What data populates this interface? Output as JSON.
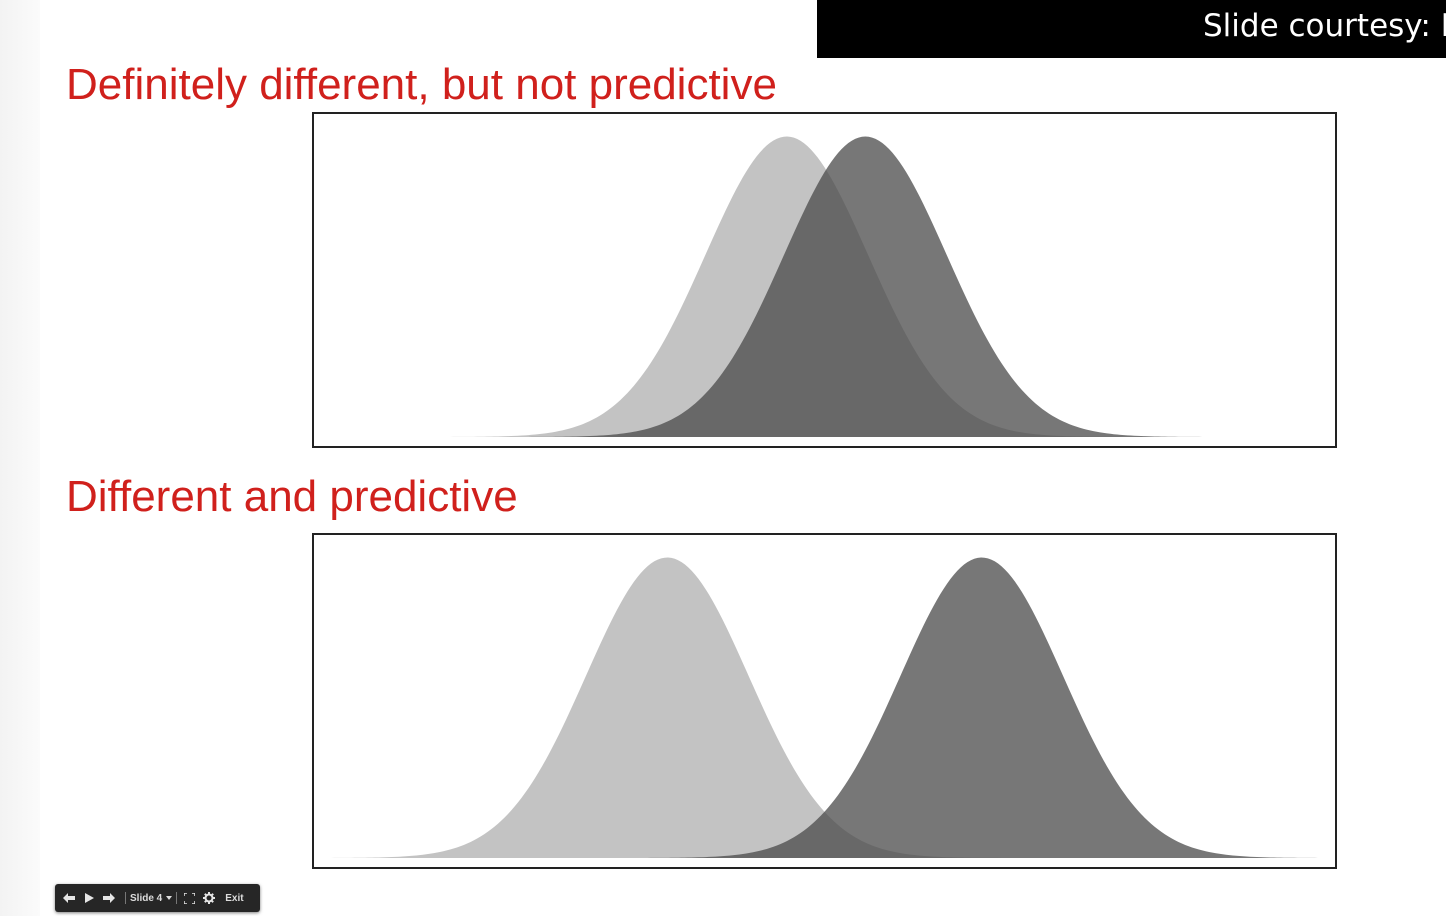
{
  "courtesy": {
    "text": "Slide courtesy: I"
  },
  "slide": {
    "title_top": "Definitely different, but not predictive",
    "title_bottom": "Different and predictive"
  },
  "colors": {
    "title": "#d0201c",
    "dist_light": "#c3c3c3",
    "dist_dark": "#4a4a4a",
    "dist_dark_opacity": 0.75
  },
  "chart_data": [
    {
      "type": "area",
      "title": "",
      "xlabel": "",
      "ylabel": "",
      "xlim": [
        0,
        1
      ],
      "ylim": [
        0,
        1
      ],
      "grid": false,
      "legend": "none",
      "series": [
        {
          "color": "#c3c3c3",
          "mean": 0.463,
          "sd": 0.0796,
          "peak": 0.96
        },
        {
          "color": "#4a4a4a",
          "mean": 0.54,
          "sd": 0.0796,
          "peak": 0.96
        }
      ]
    },
    {
      "type": "area",
      "title": "",
      "xlabel": "",
      "ylabel": "",
      "xlim": [
        0,
        1
      ],
      "ylim": [
        0,
        1
      ],
      "grid": false,
      "legend": "none",
      "series": [
        {
          "color": "#c3c3c3",
          "mean": 0.346,
          "sd": 0.0796,
          "peak": 0.96
        },
        {
          "color": "#4a4a4a",
          "mean": 0.654,
          "sd": 0.0796,
          "peak": 0.96
        }
      ]
    }
  ],
  "toolbar": {
    "prev_icon": "arrow-left-icon",
    "play_icon": "play-icon",
    "next_icon": "arrow-right-icon",
    "slide_label": "Slide 4",
    "fullscreen_icon": "fullscreen-icon",
    "settings_icon": "gear-icon",
    "exit_label": "Exit"
  }
}
